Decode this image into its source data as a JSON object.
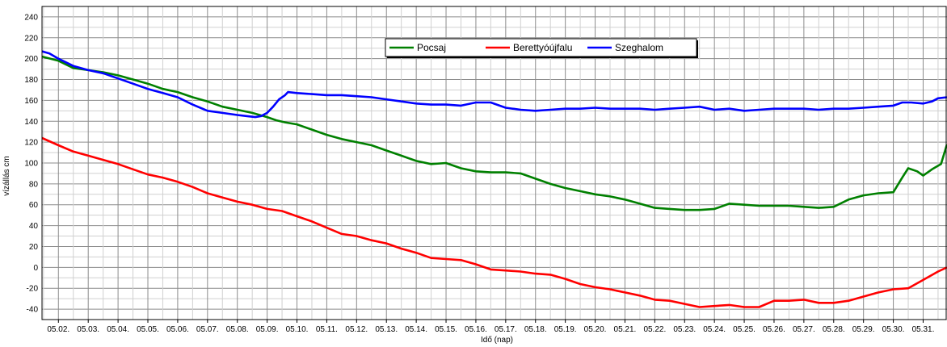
{
  "chart_data": {
    "type": "line",
    "title": "",
    "xlabel": "Idő (nap)",
    "ylabel": "vízállás cm",
    "ylim": [
      -50,
      250
    ],
    "yticks": [
      240,
      220,
      200,
      180,
      160,
      140,
      120,
      100,
      80,
      60,
      40,
      20,
      0,
      -20,
      -40
    ],
    "xlim": [
      1.45,
      31.8
    ],
    "xtick_positions": [
      2,
      3,
      4,
      5,
      6,
      7,
      8,
      9,
      10,
      11,
      12,
      13,
      14,
      15,
      16,
      17,
      18,
      19,
      20,
      21,
      22,
      23,
      24,
      25,
      26,
      27,
      28,
      29,
      30,
      31
    ],
    "xtick_labels": [
      "05.02.",
      "05.03.",
      "05.04.",
      "05.05.",
      "05.06.",
      "05.07.",
      "05.08.",
      "05.09.",
      "05.10.",
      "05.11.",
      "05.12.",
      "05.13.",
      "05.14.",
      "05.15.",
      "05.16.",
      "05.17.",
      "05.18.",
      "05.19.",
      "05.20.",
      "05.21.",
      "05.22.",
      "05.23.",
      "05.24.",
      "05.25.",
      "05.26.",
      "05.27.",
      "05.28.",
      "05.29.",
      "05.30.",
      "05.31."
    ],
    "grid": true,
    "legend_position": "top-center",
    "series": [
      {
        "name": "Pocsaj",
        "color": "#008000",
        "points": [
          [
            1.45,
            202
          ],
          [
            2,
            198
          ],
          [
            2.5,
            191
          ],
          [
            3,
            189
          ],
          [
            3.5,
            187
          ],
          [
            4,
            184
          ],
          [
            4.5,
            180
          ],
          [
            5,
            176
          ],
          [
            5.5,
            171
          ],
          [
            6,
            168
          ],
          [
            6.5,
            163
          ],
          [
            7,
            159
          ],
          [
            7.5,
            154
          ],
          [
            8,
            151
          ],
          [
            8.5,
            148
          ],
          [
            9,
            144
          ],
          [
            9.3,
            141
          ],
          [
            9.6,
            139
          ],
          [
            10,
            137
          ],
          [
            10.5,
            132
          ],
          [
            11,
            127
          ],
          [
            11.5,
            123
          ],
          [
            12,
            120
          ],
          [
            12.5,
            117
          ],
          [
            13,
            112
          ],
          [
            13.5,
            107
          ],
          [
            14,
            102
          ],
          [
            14.5,
            99
          ],
          [
            15,
            100
          ],
          [
            15.5,
            95
          ],
          [
            16,
            92
          ],
          [
            16.5,
            91
          ],
          [
            17,
            91
          ],
          [
            17.5,
            90
          ],
          [
            18,
            85
          ],
          [
            18.5,
            80
          ],
          [
            19,
            76
          ],
          [
            19.5,
            73
          ],
          [
            20,
            70
          ],
          [
            20.5,
            68
          ],
          [
            21,
            65
          ],
          [
            21.5,
            61
          ],
          [
            22,
            57
          ],
          [
            22.5,
            56
          ],
          [
            23,
            55
          ],
          [
            23.5,
            55
          ],
          [
            24,
            56
          ],
          [
            24.5,
            61
          ],
          [
            25,
            60
          ],
          [
            25.5,
            59
          ],
          [
            26,
            59
          ],
          [
            26.5,
            59
          ],
          [
            27,
            58
          ],
          [
            27.5,
            57
          ],
          [
            28,
            58
          ],
          [
            28.5,
            65
          ],
          [
            29,
            69
          ],
          [
            29.5,
            71
          ],
          [
            30,
            72
          ],
          [
            30.3,
            86
          ],
          [
            30.5,
            95
          ],
          [
            30.8,
            92
          ],
          [
            31,
            88
          ],
          [
            31.3,
            94
          ],
          [
            31.6,
            99
          ],
          [
            31.8,
            118
          ]
        ]
      },
      {
        "name": "Berettyóújfalu",
        "color": "#ff0000",
        "points": [
          [
            1.45,
            124
          ],
          [
            2,
            117
          ],
          [
            2.5,
            111
          ],
          [
            3,
            107
          ],
          [
            3.5,
            103
          ],
          [
            4,
            99
          ],
          [
            4.5,
            94
          ],
          [
            5,
            89
          ],
          [
            5.5,
            86
          ],
          [
            6,
            82
          ],
          [
            6.5,
            77
          ],
          [
            7,
            71
          ],
          [
            7.5,
            67
          ],
          [
            8,
            63
          ],
          [
            8.5,
            60
          ],
          [
            9,
            56
          ],
          [
            9.5,
            54
          ],
          [
            10,
            49
          ],
          [
            10.5,
            44
          ],
          [
            11,
            38
          ],
          [
            11.5,
            32
          ],
          [
            12,
            30
          ],
          [
            12.5,
            26
          ],
          [
            13,
            23
          ],
          [
            13.5,
            18
          ],
          [
            14,
            14
          ],
          [
            14.5,
            9
          ],
          [
            15,
            8
          ],
          [
            15.5,
            7
          ],
          [
            16,
            3
          ],
          [
            16.5,
            -2
          ],
          [
            17,
            -3
          ],
          [
            17.5,
            -4
          ],
          [
            18,
            -6
          ],
          [
            18.5,
            -7
          ],
          [
            19,
            -11
          ],
          [
            19.5,
            -16
          ],
          [
            20,
            -19
          ],
          [
            20.5,
            -21
          ],
          [
            21,
            -24
          ],
          [
            21.5,
            -27
          ],
          [
            22,
            -31
          ],
          [
            22.5,
            -32
          ],
          [
            23,
            -35
          ],
          [
            23.5,
            -38
          ],
          [
            24,
            -37
          ],
          [
            24.5,
            -36
          ],
          [
            25,
            -38
          ],
          [
            25.5,
            -38
          ],
          [
            26,
            -32
          ],
          [
            26.5,
            -32
          ],
          [
            27,
            -31
          ],
          [
            27.5,
            -34
          ],
          [
            28,
            -34
          ],
          [
            28.5,
            -32
          ],
          [
            29,
            -28
          ],
          [
            29.5,
            -24
          ],
          [
            30,
            -21
          ],
          [
            30.5,
            -20
          ],
          [
            31,
            -12
          ],
          [
            31.5,
            -4
          ],
          [
            31.8,
            0
          ]
        ]
      },
      {
        "name": "Szeghalom",
        "color": "#0000ff",
        "points": [
          [
            1.45,
            207
          ],
          [
            1.7,
            205
          ],
          [
            2,
            200
          ],
          [
            2.5,
            193
          ],
          [
            3,
            189
          ],
          [
            3.5,
            186
          ],
          [
            4,
            181
          ],
          [
            4.5,
            176
          ],
          [
            5,
            171
          ],
          [
            5.5,
            167
          ],
          [
            6,
            163
          ],
          [
            6.5,
            156
          ],
          [
            7,
            150
          ],
          [
            7.5,
            148
          ],
          [
            8,
            146
          ],
          [
            8.3,
            145
          ],
          [
            8.6,
            144
          ],
          [
            8.8,
            145
          ],
          [
            9,
            148
          ],
          [
            9.2,
            154
          ],
          [
            9.4,
            161
          ],
          [
            9.6,
            165
          ],
          [
            9.7,
            168
          ],
          [
            10,
            167
          ],
          [
            10.5,
            166
          ],
          [
            11,
            165
          ],
          [
            11.5,
            165
          ],
          [
            12,
            164
          ],
          [
            12.5,
            163
          ],
          [
            13,
            161
          ],
          [
            13.5,
            159
          ],
          [
            14,
            157
          ],
          [
            14.5,
            156
          ],
          [
            15,
            156
          ],
          [
            15.5,
            155
          ],
          [
            16,
            158
          ],
          [
            16.5,
            158
          ],
          [
            17,
            153
          ],
          [
            17.5,
            151
          ],
          [
            18,
            150
          ],
          [
            18.5,
            151
          ],
          [
            19,
            152
          ],
          [
            19.5,
            152
          ],
          [
            20,
            153
          ],
          [
            20.5,
            152
          ],
          [
            21,
            152
          ],
          [
            21.5,
            152
          ],
          [
            22,
            151
          ],
          [
            22.5,
            152
          ],
          [
            23,
            153
          ],
          [
            23.5,
            154
          ],
          [
            24,
            151
          ],
          [
            24.5,
            152
          ],
          [
            25,
            150
          ],
          [
            25.5,
            151
          ],
          [
            26,
            152
          ],
          [
            26.5,
            152
          ],
          [
            27,
            152
          ],
          [
            27.5,
            151
          ],
          [
            28,
            152
          ],
          [
            28.5,
            152
          ],
          [
            29,
            153
          ],
          [
            29.5,
            154
          ],
          [
            30,
            155
          ],
          [
            30.3,
            158
          ],
          [
            30.6,
            158
          ],
          [
            31,
            157
          ],
          [
            31.3,
            159
          ],
          [
            31.5,
            162
          ],
          [
            31.8,
            163
          ]
        ]
      }
    ]
  }
}
